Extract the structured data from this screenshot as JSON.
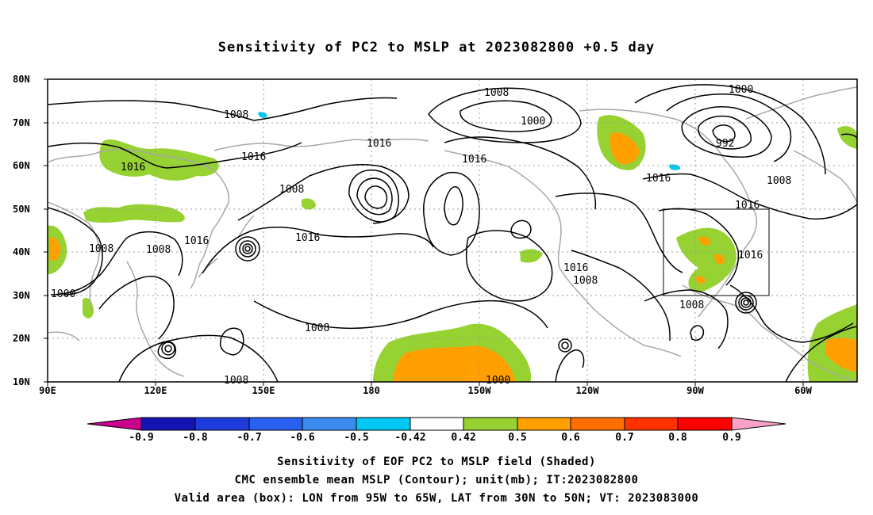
{
  "title": "Sensitivity of PC2 to MSLP at 2023082800 +0.5 day",
  "lat_labels": [
    "80N",
    "70N",
    "60N",
    "50N",
    "40N",
    "30N",
    "20N",
    "10N"
  ],
  "lon_labels": [
    "90E",
    "120E",
    "150E",
    "180",
    "150W",
    "120W",
    "90W",
    "60W"
  ],
  "colorbar": {
    "labels": [
      "-0.9",
      "-0.8",
      "-0.7",
      "-0.6",
      "-0.5",
      "-0.42",
      "0.42",
      "0.5",
      "0.6",
      "0.7",
      "0.8",
      "0.9"
    ],
    "colors": [
      "#c8008c",
      "#1414b4",
      "#1e3cdc",
      "#2860f0",
      "#3c8cf0",
      "#00c8f0",
      "#ffffff",
      "#96d232",
      "#ffa000",
      "#ff6e00",
      "#ff3200",
      "#ff0000",
      "#f8a0c8"
    ]
  },
  "contour_labels": {
    "l1008_a": "1008",
    "l1008_b": "1008",
    "l1000_a": "1000",
    "l1000_b": "1000",
    "l992": "992",
    "l1016_a": "1016",
    "l1016_b": "1016",
    "l1016_c": "1016",
    "l1008_c": "1008",
    "l1016_d": "1016",
    "l1016_e": "1016",
    "l1008_d": "1008",
    "l1016_f": "1016",
    "l1008_e": "1008",
    "l1016_g": "1016",
    "l1008_f": "1008",
    "l1016_h": "1016",
    "l1008_g": "1008",
    "l1016_i": "1016",
    "l1016_j": "1016",
    "l1008_h": "1008",
    "l1000_c": "1000",
    "l1008_i": "1008",
    "l1008_j": "1008"
  },
  "footer": {
    "line1": "Sensitivity of EOF PC2 to MSLP field (Shaded)",
    "line2": "CMC ensemble mean MSLP (Contour); unit(mb); IT:2023082800",
    "line3": "Valid area (box): LON from 95W to 65W, LAT from 30N to 50N; VT: 2023083000"
  }
}
